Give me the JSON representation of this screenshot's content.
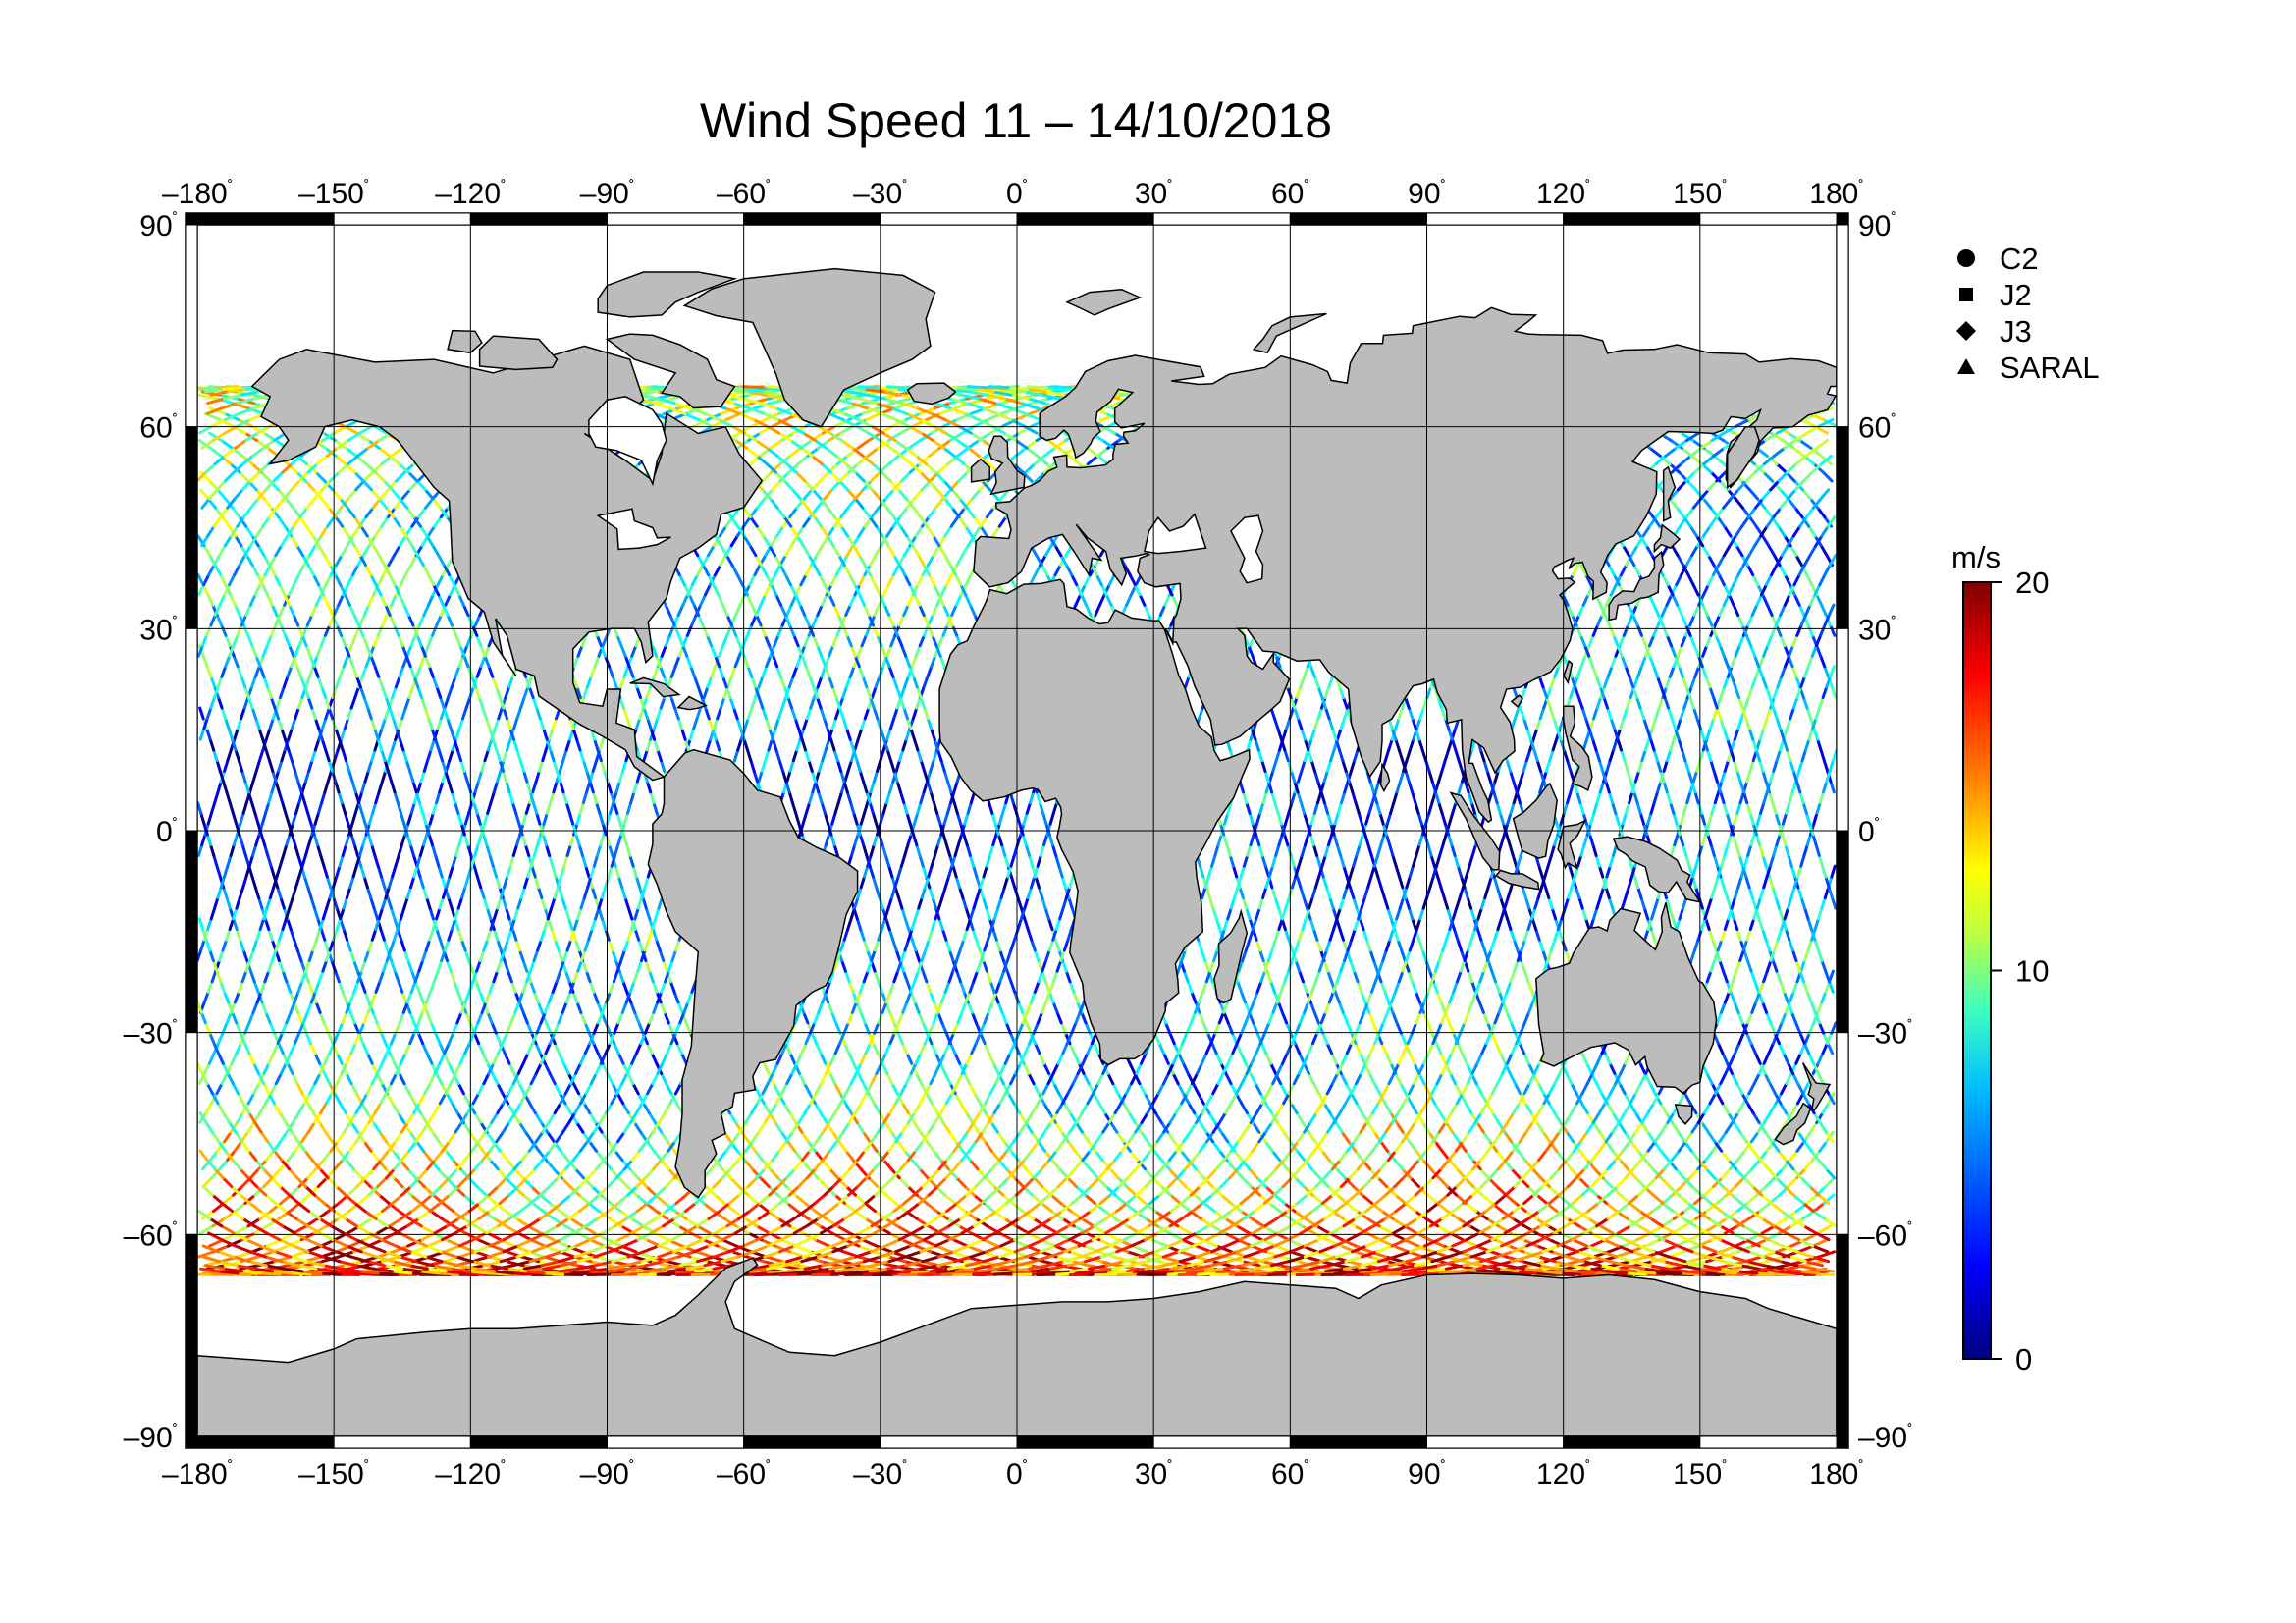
{
  "chart_data": {
    "type": "scatter",
    "title": "Wind Speed 11 – 14/10/2018",
    "projection": "equirectangular",
    "xlim": [
      -180,
      180
    ],
    "ylim": [
      -90,
      90
    ],
    "grid": true,
    "x_ticks": [
      -180,
      -150,
      -120,
      -90,
      -60,
      -30,
      0,
      30,
      60,
      90,
      120,
      150,
      180
    ],
    "y_ticks": [
      90,
      60,
      30,
      0,
      -30,
      -60,
      -90
    ],
    "x_tick_labels": [
      "–180",
      "–150",
      "–120",
      "–90",
      "–60",
      "–30",
      "0",
      "30",
      "60",
      "90",
      "120",
      "150",
      "180"
    ],
    "y_tick_labels": [
      "90",
      "60",
      "30",
      "0",
      "–30",
      "–60",
      "–90"
    ],
    "degree_mark": "˚",
    "legend_position": "top-right",
    "legend": [
      {
        "name": "C2",
        "marker": "circle"
      },
      {
        "name": "J2",
        "marker": "square"
      },
      {
        "name": "J3",
        "marker": "diamond"
      },
      {
        "name": "SARAL",
        "marker": "triangle"
      }
    ],
    "colorbar": {
      "unit": "m/s",
      "min": 0,
      "max": 20,
      "tick_labels": [
        "20",
        "10",
        "0"
      ],
      "colormap": [
        "#00007f",
        "#0000ff",
        "#007fff",
        "#00ffff",
        "#7fff7f",
        "#ffff00",
        "#ff7f00",
        "#ff0000",
        "#7f0000"
      ]
    },
    "tracks_description_values": {
      "latitude_coverage": [
        -66,
        66
      ],
      "high_wind_regions": "Southern Ocean (south of -40)"
    },
    "colors": {
      "land": "#bcbcbc",
      "ocean": "#ffffff",
      "frame": "#000000"
    }
  }
}
